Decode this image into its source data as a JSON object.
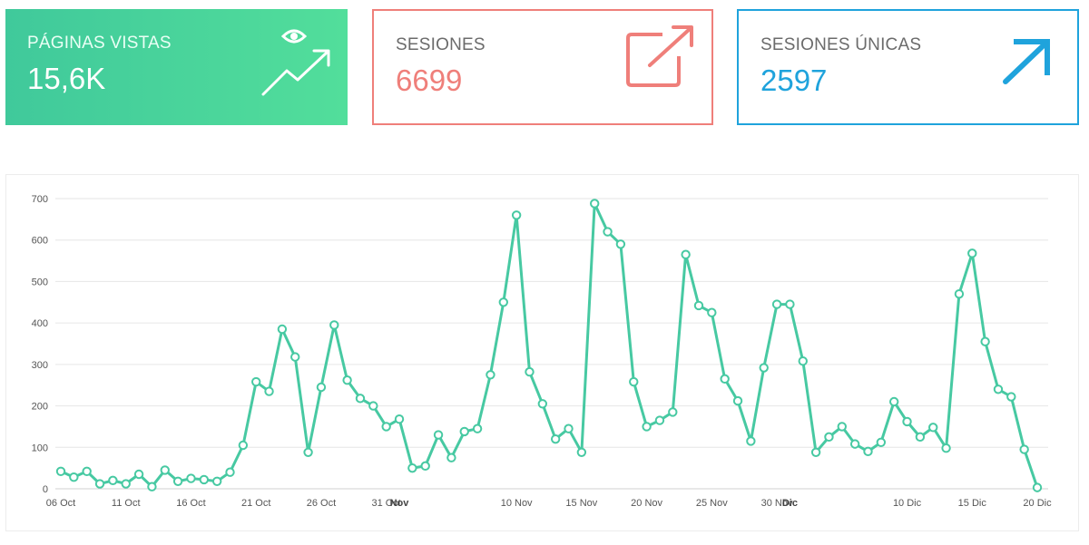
{
  "cards": [
    {
      "label": "PÁGINAS VISTAS",
      "value": "15,6K",
      "icon": "trend-up-eye-icon",
      "color": "#47d29b"
    },
    {
      "label": "SESIONES",
      "value": "6699",
      "icon": "external-link-icon",
      "color": "#ef7f7a"
    },
    {
      "label": "SESIONES ÚNICAS",
      "value": "2597",
      "icon": "arrow-up-right-icon",
      "color": "#1fa3dc"
    }
  ],
  "chart_data": {
    "type": "line",
    "title": "",
    "xlabel": "",
    "ylabel": "",
    "ylim": [
      0,
      700
    ],
    "yticks": [
      0,
      100,
      200,
      300,
      400,
      500,
      600,
      700
    ],
    "grid": true,
    "line_color": "#47c9a2",
    "x_labels": [
      {
        "text": "06 Oct",
        "index": 0,
        "bold": false
      },
      {
        "text": "11 Oct",
        "index": 5,
        "bold": false
      },
      {
        "text": "16 Oct",
        "index": 10,
        "bold": false
      },
      {
        "text": "21 Oct",
        "index": 15,
        "bold": false
      },
      {
        "text": "26 Oct",
        "index": 20,
        "bold": false
      },
      {
        "text": "31 Oct",
        "index": 25,
        "bold": false
      },
      {
        "text": "Nov",
        "index": 26,
        "bold": true
      },
      {
        "text": "10 Nov",
        "index": 35,
        "bold": false
      },
      {
        "text": "15 Nov",
        "index": 40,
        "bold": false
      },
      {
        "text": "20 Nov",
        "index": 45,
        "bold": false
      },
      {
        "text": "25 Nov",
        "index": 50,
        "bold": false
      },
      {
        "text": "30 Nov",
        "index": 55,
        "bold": false
      },
      {
        "text": "Dic",
        "index": 56,
        "bold": true
      },
      {
        "text": "10 Dic",
        "index": 65,
        "bold": false
      },
      {
        "text": "15 Dic",
        "index": 70,
        "bold": false
      },
      {
        "text": "20 Dic",
        "index": 75,
        "bold": false
      }
    ],
    "values": [
      42,
      28,
      42,
      12,
      20,
      12,
      35,
      5,
      45,
      18,
      25,
      22,
      18,
      40,
      105,
      258,
      235,
      385,
      318,
      88,
      245,
      395,
      262,
      218,
      200,
      150,
      168,
      50,
      55,
      130,
      75,
      138,
      145,
      275,
      450,
      660,
      282,
      205,
      120,
      145,
      88,
      688,
      620,
      590,
      258,
      150,
      165,
      185,
      565,
      442,
      425,
      265,
      212,
      115,
      292,
      445,
      445,
      308,
      88,
      125,
      150,
      108,
      90,
      112,
      210,
      162,
      125,
      148,
      98,
      470,
      568,
      355,
      240,
      222,
      95,
      3
    ]
  }
}
